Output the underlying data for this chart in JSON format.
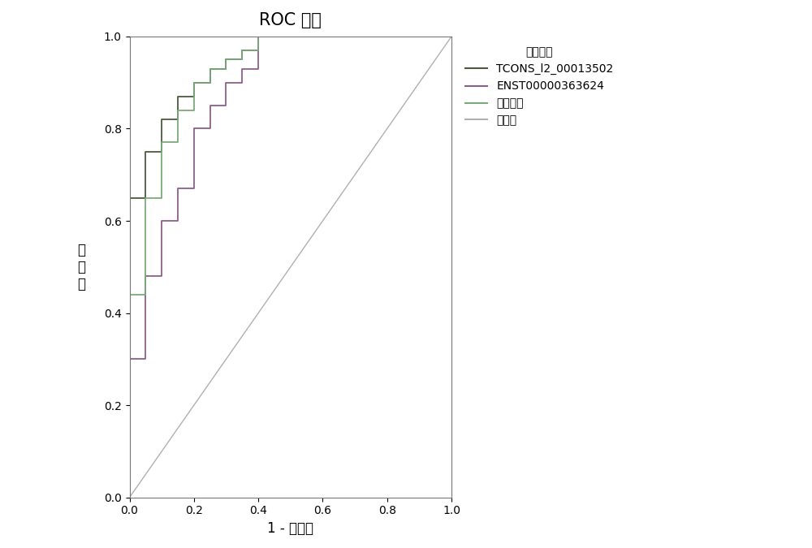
{
  "title": "ROC 曲线",
  "xlabel": "1 - 特异性",
  "ylabel": "敏感度",
  "ylabel_chars": [
    "敏",
    "感",
    "度"
  ],
  "legend_title": "曲线来源",
  "legend_labels": [
    "TCONS_l2_00013502",
    "ENST00000363624",
    "联合诊断",
    "参考线"
  ],
  "xlim": [
    0.0,
    1.0
  ],
  "ylim": [
    0.0,
    1.0
  ],
  "xticks": [
    0.0,
    0.2,
    0.4,
    0.6,
    0.8,
    1.0
  ],
  "yticks": [
    0.0,
    0.2,
    0.4,
    0.6,
    0.8,
    1.0
  ],
  "curve_TCONS": {
    "fpr": [
      0.0,
      0.0,
      0.05,
      0.05,
      0.1,
      0.1,
      0.15,
      0.15,
      0.2,
      0.2,
      0.25,
      0.25,
      0.3,
      0.3,
      0.35,
      0.35,
      0.4,
      0.4,
      0.45,
      0.45,
      0.5,
      0.5,
      1.0
    ],
    "tpr": [
      0.0,
      0.65,
      0.65,
      0.75,
      0.75,
      0.82,
      0.82,
      0.87,
      0.87,
      0.9,
      0.9,
      0.93,
      0.93,
      0.95,
      0.95,
      0.97,
      0.97,
      1.0,
      1.0,
      1.0,
      1.0,
      1.0,
      1.0
    ],
    "color": "#4a5a3a",
    "linewidth": 1.3
  },
  "curve_ENST": {
    "fpr": [
      0.0,
      0.0,
      0.05,
      0.05,
      0.1,
      0.1,
      0.15,
      0.15,
      0.2,
      0.2,
      0.25,
      0.25,
      0.3,
      0.3,
      0.35,
      0.35,
      0.4,
      0.4,
      0.5,
      0.5,
      1.0
    ],
    "tpr": [
      0.0,
      0.3,
      0.3,
      0.48,
      0.48,
      0.6,
      0.6,
      0.67,
      0.67,
      0.8,
      0.8,
      0.85,
      0.85,
      0.9,
      0.9,
      0.93,
      0.93,
      1.0,
      1.0,
      1.0,
      1.0
    ],
    "color": "#8b5f8b",
    "linewidth": 1.3
  },
  "curve_combined": {
    "fpr": [
      0.0,
      0.0,
      0.05,
      0.05,
      0.1,
      0.1,
      0.15,
      0.15,
      0.2,
      0.2,
      0.25,
      0.25,
      0.3,
      0.3,
      0.35,
      0.35,
      0.4,
      0.4,
      0.45,
      0.45,
      0.5,
      0.5,
      1.0
    ],
    "tpr": [
      0.0,
      0.44,
      0.44,
      0.65,
      0.65,
      0.77,
      0.77,
      0.84,
      0.84,
      0.9,
      0.9,
      0.93,
      0.93,
      0.95,
      0.95,
      0.97,
      0.97,
      1.0,
      1.0,
      1.0,
      1.0,
      1.0,
      1.0
    ],
    "color": "#7aaa7a",
    "linewidth": 1.3
  },
  "reference_line": {
    "color": "#b0b0b0",
    "linewidth": 1.0
  },
  "background_color": "#ffffff",
  "title_fontsize": 15,
  "label_fontsize": 12,
  "tick_fontsize": 10,
  "legend_fontsize": 10,
  "legend_title_fontsize": 11
}
